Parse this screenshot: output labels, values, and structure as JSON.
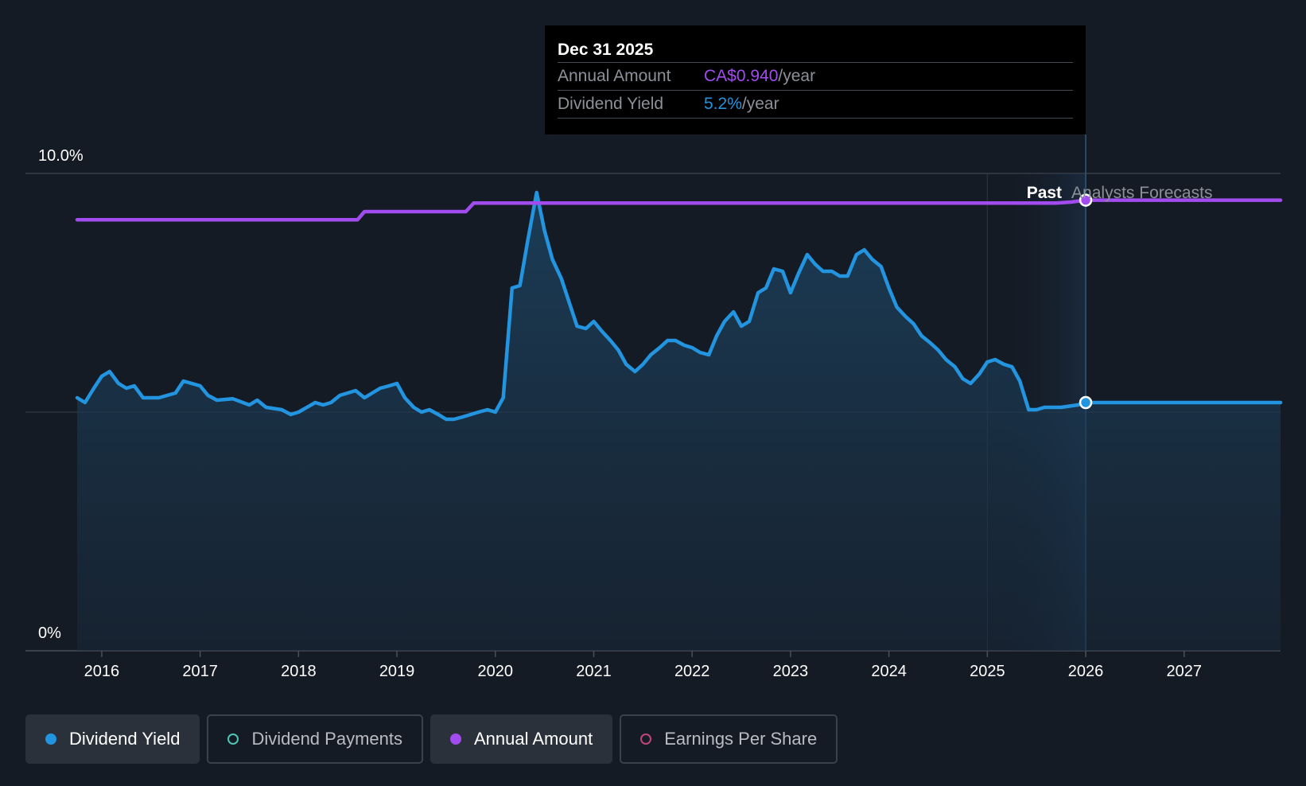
{
  "chart_data": {
    "type": "line",
    "title": "",
    "xlabel": "",
    "ylabel": "",
    "x_ticks": [
      "2016",
      "2017",
      "2018",
      "2019",
      "2020",
      "2021",
      "2022",
      "2023",
      "2024",
      "2025",
      "2026",
      "2027"
    ],
    "y_ticks": [
      "10.0%",
      "0%"
    ],
    "ylim": [
      0,
      10
    ],
    "xlim": [
      2015.75,
      2027.98
    ],
    "grid": true,
    "region_labels": {
      "past": "Past",
      "forecast": "Analysts Forecasts"
    },
    "forecast_start": 2026.0,
    "series": [
      {
        "name": "Dividend Yield",
        "color": "#2394df",
        "points": [
          [
            2015.75,
            5.3
          ],
          [
            2015.83,
            5.2
          ],
          [
            2015.92,
            5.5
          ],
          [
            2016.0,
            5.75
          ],
          [
            2016.08,
            5.85
          ],
          [
            2016.17,
            5.6
          ],
          [
            2016.25,
            5.5
          ],
          [
            2016.33,
            5.55
          ],
          [
            2016.42,
            5.3
          ],
          [
            2016.58,
            5.3
          ],
          [
            2016.75,
            5.4
          ],
          [
            2016.83,
            5.65
          ],
          [
            2017.0,
            5.55
          ],
          [
            2017.08,
            5.35
          ],
          [
            2017.17,
            5.25
          ],
          [
            2017.33,
            5.28
          ],
          [
            2017.5,
            5.15
          ],
          [
            2017.58,
            5.25
          ],
          [
            2017.67,
            5.1
          ],
          [
            2017.83,
            5.05
          ],
          [
            2017.92,
            4.95
          ],
          [
            2018.0,
            5.0
          ],
          [
            2018.17,
            5.2
          ],
          [
            2018.25,
            5.15
          ],
          [
            2018.33,
            5.2
          ],
          [
            2018.42,
            5.35
          ],
          [
            2018.58,
            5.45
          ],
          [
            2018.67,
            5.3
          ],
          [
            2018.83,
            5.5
          ],
          [
            2018.92,
            5.55
          ],
          [
            2019.0,
            5.6
          ],
          [
            2019.08,
            5.3
          ],
          [
            2019.17,
            5.1
          ],
          [
            2019.25,
            5.0
          ],
          [
            2019.33,
            5.05
          ],
          [
            2019.42,
            4.95
          ],
          [
            2019.5,
            4.85
          ],
          [
            2019.58,
            4.85
          ],
          [
            2019.67,
            4.9
          ],
          [
            2019.83,
            5.0
          ],
          [
            2019.92,
            5.05
          ],
          [
            2020.0,
            5.0
          ],
          [
            2020.08,
            5.3
          ],
          [
            2020.17,
            7.6
          ],
          [
            2020.25,
            7.65
          ],
          [
            2020.33,
            8.6
          ],
          [
            2020.42,
            9.6
          ],
          [
            2020.5,
            8.8
          ],
          [
            2020.58,
            8.2
          ],
          [
            2020.67,
            7.8
          ],
          [
            2020.75,
            7.3
          ],
          [
            2020.83,
            6.8
          ],
          [
            2020.92,
            6.75
          ],
          [
            2021.0,
            6.9
          ],
          [
            2021.08,
            6.7
          ],
          [
            2021.17,
            6.5
          ],
          [
            2021.25,
            6.3
          ],
          [
            2021.33,
            6.0
          ],
          [
            2021.42,
            5.85
          ],
          [
            2021.5,
            6.0
          ],
          [
            2021.58,
            6.2
          ],
          [
            2021.67,
            6.35
          ],
          [
            2021.75,
            6.5
          ],
          [
            2021.83,
            6.5
          ],
          [
            2021.92,
            6.4
          ],
          [
            2022.0,
            6.35
          ],
          [
            2022.08,
            6.25
          ],
          [
            2022.17,
            6.2
          ],
          [
            2022.25,
            6.6
          ],
          [
            2022.33,
            6.9
          ],
          [
            2022.42,
            7.1
          ],
          [
            2022.5,
            6.8
          ],
          [
            2022.58,
            6.9
          ],
          [
            2022.67,
            7.5
          ],
          [
            2022.75,
            7.6
          ],
          [
            2022.83,
            8.0
          ],
          [
            2022.92,
            7.95
          ],
          [
            2023.0,
            7.5
          ],
          [
            2023.08,
            7.9
          ],
          [
            2023.17,
            8.3
          ],
          [
            2023.25,
            8.1
          ],
          [
            2023.33,
            7.95
          ],
          [
            2023.42,
            7.95
          ],
          [
            2023.5,
            7.85
          ],
          [
            2023.58,
            7.85
          ],
          [
            2023.67,
            8.3
          ],
          [
            2023.75,
            8.4
          ],
          [
            2023.83,
            8.2
          ],
          [
            2023.92,
            8.05
          ],
          [
            2024.0,
            7.6
          ],
          [
            2024.08,
            7.2
          ],
          [
            2024.17,
            7.0
          ],
          [
            2024.25,
            6.85
          ],
          [
            2024.33,
            6.6
          ],
          [
            2024.42,
            6.45
          ],
          [
            2024.5,
            6.3
          ],
          [
            2024.58,
            6.1
          ],
          [
            2024.67,
            5.95
          ],
          [
            2024.75,
            5.7
          ],
          [
            2024.83,
            5.6
          ],
          [
            2024.92,
            5.8
          ],
          [
            2025.0,
            6.05
          ],
          [
            2025.08,
            6.1
          ],
          [
            2025.17,
            6.0
          ],
          [
            2025.25,
            5.95
          ],
          [
            2025.33,
            5.65
          ],
          [
            2025.42,
            5.05
          ],
          [
            2025.5,
            5.05
          ],
          [
            2025.58,
            5.1
          ],
          [
            2025.75,
            5.1
          ],
          [
            2025.92,
            5.15
          ],
          [
            2026.0,
            5.2
          ],
          [
            2026.5,
            5.2
          ],
          [
            2027.0,
            5.2
          ],
          [
            2027.98,
            5.2
          ]
        ]
      },
      {
        "name": "Annual Amount",
        "color": "#a24cf0",
        "points": [
          [
            2015.75,
            9.03
          ],
          [
            2018.6,
            9.03
          ],
          [
            2018.67,
            9.2
          ],
          [
            2019.7,
            9.2
          ],
          [
            2019.78,
            9.38
          ],
          [
            2025.7,
            9.38
          ],
          [
            2025.85,
            9.4
          ],
          [
            2026.0,
            9.44
          ],
          [
            2027.98,
            9.44
          ]
        ]
      }
    ],
    "tooltip": {
      "date": "Dec 31 2025",
      "rows": [
        {
          "label": "Annual Amount",
          "value": "CA$0.940",
          "unit": "/year",
          "color": "#a24cf0"
        },
        {
          "label": "Dividend Yield",
          "value": "5.2%",
          "unit": "/year",
          "color": "#2394df"
        }
      ]
    }
  },
  "legend": [
    {
      "label": "Dividend Yield",
      "color": "#2394df",
      "style": "filled-dot",
      "active": true
    },
    {
      "label": "Dividend Payments",
      "color": "#4ec5b8",
      "style": "ring",
      "active": false
    },
    {
      "label": "Annual Amount",
      "color": "#a24cf0",
      "style": "filled-dot",
      "active": true
    },
    {
      "label": "Earnings Per Share",
      "color": "#c0467a",
      "style": "ring",
      "active": false
    }
  ]
}
